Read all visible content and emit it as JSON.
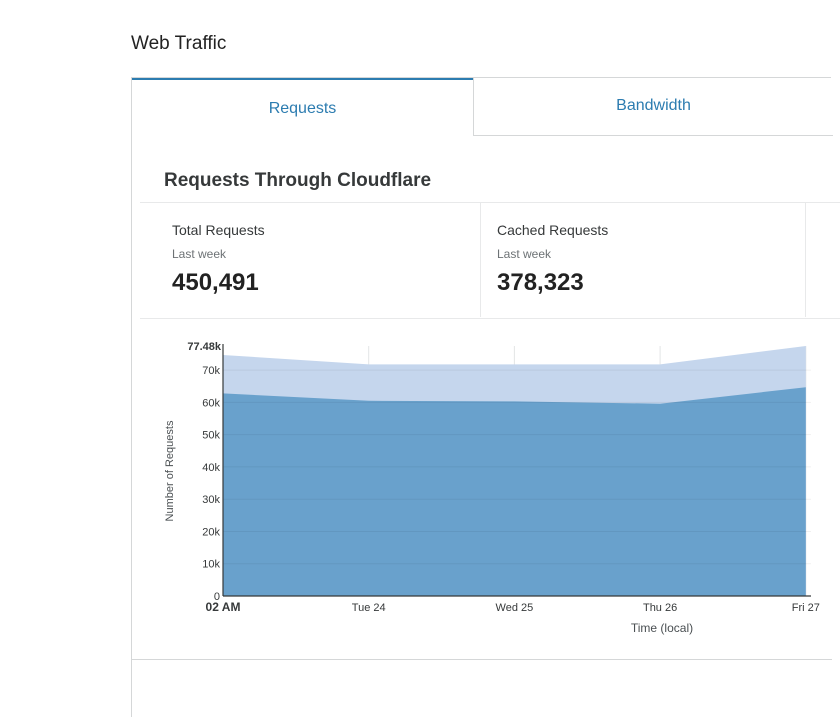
{
  "section": {
    "title": "Web Traffic"
  },
  "tabs": [
    {
      "label": "Requests",
      "active": true
    },
    {
      "label": "Bandwidth",
      "active": false
    }
  ],
  "card": {
    "title": "Requests Through Cloudflare"
  },
  "stats": [
    {
      "label": "Total Requests",
      "period": "Last week",
      "value": "450,491"
    },
    {
      "label": "Cached Requests",
      "period": "Last week",
      "value": "378,323"
    }
  ],
  "colors": {
    "accent": "#2c7cb0",
    "total_fill": "#c5d6ed",
    "cached_fill": "#69a1cc"
  },
  "chart_data": {
    "type": "area",
    "xlabel": "Time (local)",
    "ylabel": "Number of Requests",
    "x_ticks": [
      "02 AM",
      "Tue 24",
      "Wed 25",
      "Thu 26",
      "Fri 27"
    ],
    "x": [
      "02 AM",
      "Tue 24",
      "Wed 25",
      "Thu 26",
      "Fri 27"
    ],
    "y_ticks": [
      "0",
      "10k",
      "20k",
      "30k",
      "40k",
      "50k",
      "60k",
      "70k"
    ],
    "y_max_label": "77.48k",
    "ylim": [
      0,
      77480
    ],
    "series": [
      {
        "values": [
          74700,
          71800,
          71800,
          71800,
          77480
        ]
      },
      {
        "values": [
          62800,
          60500,
          60300,
          59600,
          64700
        ]
      }
    ],
    "grid": true
  }
}
